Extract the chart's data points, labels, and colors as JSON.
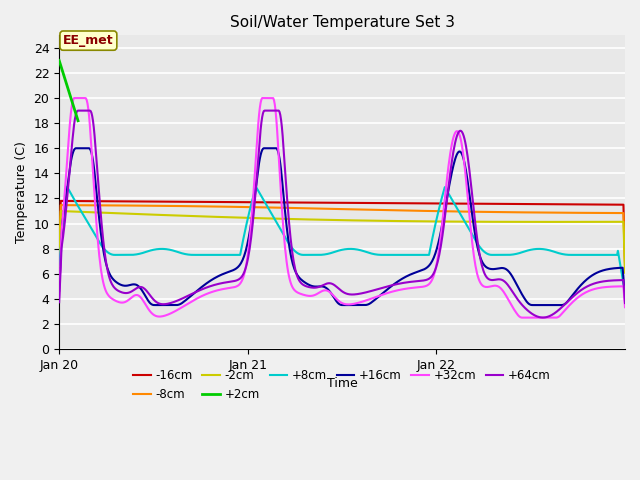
{
  "title": "Soil/Water Temperature Set 3",
  "xlabel": "Time",
  "ylabel": "Temperature (C)",
  "ylim": [
    0,
    25
  ],
  "xlim": [
    0,
    72
  ],
  "xtick_labels": [
    "Jan 20",
    "Jan 21",
    "Jan 22"
  ],
  "xtick_positions": [
    0,
    24,
    48
  ],
  "annotation_label": "EE_met",
  "fig_bg": "#f0f0f0",
  "ax_bg": "#e8e8e8",
  "series_colors": {
    "-16cm": "#cc0000",
    "-8cm": "#ff8800",
    "-2cm": "#cccc00",
    "+2cm": "#00cc00",
    "+8cm": "#00cccc",
    "+16cm": "#000099",
    "+32cm": "#ff44ff",
    "+64cm": "#9900cc"
  }
}
